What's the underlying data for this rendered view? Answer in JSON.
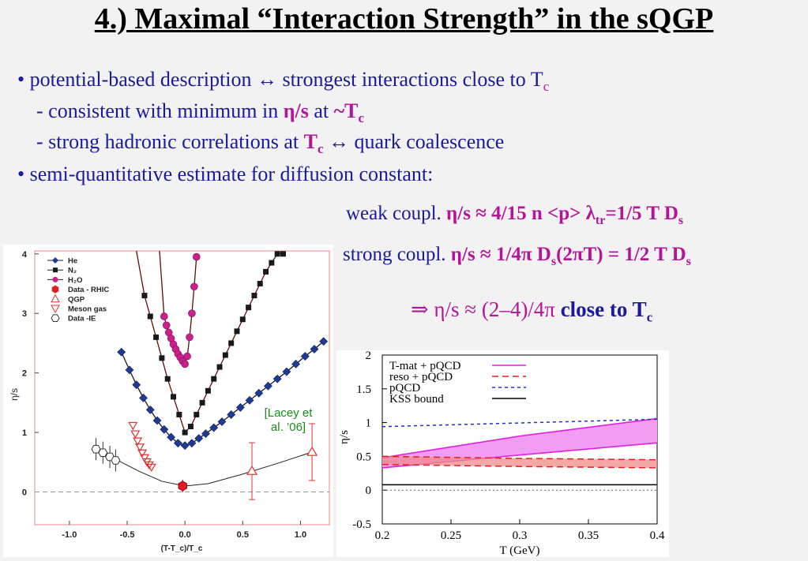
{
  "title": "4.) Maximal “Interaction Strength” in the sQGP",
  "bullets": {
    "b1_text": "• potential-based description ↔ strongest interactions close to T",
    "b1_sub": "c",
    "b1a_pre": "- consistent with minimum in ",
    "b1a_eta": "η/s",
    "b1a_mid": " at ",
    "b1a_t": "~T",
    "b1a_sub": "c",
    "b1b_pre": "- strong hadronic correlations at ",
    "b1b_t": "T",
    "b1b_sub": "c",
    "b1b_post": " ↔  quark coalescence",
    "b2_text": "• semi-quantitative estimate for diffusion constant:"
  },
  "equations": {
    "weak_label": "weak coupl.  ",
    "weak_eq": "η/s ≈ 4/15 n <p> λ",
    "weak_sub": "tr",
    "weak_end": "=1/5 T D",
    "weak_end_sub": "s",
    "strong_label": "strong coupl. ",
    "strong_eq": "η/s ≈ 1/4π D",
    "strong_sub": "s",
    "strong_end": "(2πT) = 1/2 T D",
    "strong_end_sub": "s",
    "concl_arrow": "⇒  ",
    "concl_eq": "η/s ≈ (2–4)/4π ",
    "concl_close": "close to T",
    "concl_sub": "c"
  },
  "colors": {
    "blue_text": "#1a1a9a",
    "magenta": "#b4149a",
    "green_annot": "#1a8a1a",
    "he": "#1f3a93",
    "n2": "#1a1a1a",
    "h2o": "#cc1f8a",
    "qgp": "#e03030",
    "tmat": "#e020e0",
    "reso": "#e02020",
    "pqcd": "#1c2fd0"
  },
  "chart_data": [
    {
      "type": "scatter",
      "xlabel": "(T-T_c)/T_c",
      "ylabel": "η/s",
      "xlim": [
        -1.3,
        1.25
      ],
      "ylim": [
        -0.55,
        4.05
      ],
      "xticks": [
        "-1.0",
        "-0.5",
        "0.0",
        "0.5",
        "1.0"
      ],
      "yticks": [
        "0",
        "1",
        "2",
        "3",
        "4"
      ],
      "annotation": [
        "[Lacey et",
        "al. ’06]"
      ],
      "legend": [
        {
          "label": "He"
        },
        {
          "label": "N₂"
        },
        {
          "label": "H₂O"
        },
        {
          "label": "Data - RHIC"
        },
        {
          "label": "QGP"
        },
        {
          "label": "Meson gas"
        },
        {
          "label": "Data -IE"
        }
      ],
      "series": [
        {
          "name": "He",
          "marker": "diamond",
          "x": [
            -0.55,
            -0.48,
            -0.42,
            -0.36,
            -0.3,
            -0.24,
            -0.18,
            -0.12,
            -0.06,
            0.0,
            0.06,
            0.12,
            0.18,
            0.25,
            0.32,
            0.4,
            0.48,
            0.56,
            0.64,
            0.72,
            0.8,
            0.88,
            0.96,
            1.04,
            1.12,
            1.2
          ],
          "y": [
            2.35,
            2.05,
            1.8,
            1.58,
            1.38,
            1.2,
            1.05,
            0.92,
            0.82,
            0.78,
            0.82,
            0.9,
            0.98,
            1.08,
            1.18,
            1.3,
            1.42,
            1.54,
            1.66,
            1.78,
            1.9,
            2.02,
            2.15,
            2.28,
            2.4,
            2.53
          ]
        },
        {
          "name": "N₂",
          "marker": "square",
          "x": [
            -0.35,
            -0.3,
            -0.25,
            -0.2,
            -0.15,
            -0.1,
            -0.05,
            0.0,
            0.05,
            0.1,
            0.15,
            0.2,
            0.25,
            0.3,
            0.35,
            0.4,
            0.45,
            0.5,
            0.55,
            0.6,
            0.65,
            0.7,
            0.75,
            0.8,
            0.85
          ],
          "y": [
            3.3,
            2.95,
            2.6,
            2.25,
            1.9,
            1.6,
            1.3,
            1.0,
            1.1,
            1.3,
            1.5,
            1.7,
            1.9,
            2.1,
            2.3,
            2.5,
            2.7,
            2.9,
            3.1,
            3.3,
            3.5,
            3.7,
            3.85,
            4.0,
            4.0
          ]
        },
        {
          "name": "H₂O",
          "marker": "circle",
          "x": [
            -0.18,
            -0.16,
            -0.14,
            -0.12,
            -0.1,
            -0.08,
            -0.06,
            -0.04,
            -0.02,
            0.0,
            0.02,
            0.04,
            0.06,
            0.08,
            0.1
          ],
          "y": [
            2.95,
            2.8,
            2.68,
            2.58,
            2.48,
            2.4,
            2.32,
            2.26,
            2.2,
            2.15,
            2.28,
            2.6,
            3.0,
            3.45,
            3.95
          ]
        },
        {
          "name": "Data - RHIC",
          "marker": "hexagon",
          "x": [
            -0.02
          ],
          "y": [
            0.1
          ]
        },
        {
          "name": "QGP",
          "marker": "triangle-up",
          "x": [
            0.58,
            1.1
          ],
          "y": [
            0.35,
            0.67
          ]
        },
        {
          "name": "Meson gas",
          "marker": "triangle-down",
          "x": [
            -0.45,
            -0.43,
            -0.41,
            -0.39,
            -0.37,
            -0.35,
            -0.33,
            -0.31,
            -0.29
          ],
          "y": [
            1.12,
            0.98,
            0.86,
            0.76,
            0.66,
            0.58,
            0.51,
            0.46,
            0.42
          ]
        },
        {
          "name": "Data -IE",
          "marker": "hexagon-open",
          "x": [
            -0.77,
            -0.71,
            -0.65,
            -0.6
          ],
          "y": [
            0.72,
            0.66,
            0.59,
            0.53
          ]
        }
      ]
    },
    {
      "type": "line",
      "xlabel": "T (GeV)",
      "ylabel": "η/s",
      "xlim": [
        0.2,
        0.4
      ],
      "ylim": [
        -0.5,
        2.0
      ],
      "xticks": [
        "0.2",
        "0.25",
        "0.3",
        "0.35",
        "0.4"
      ],
      "yticks": [
        "2",
        "1.5",
        "1",
        "0.5",
        "0",
        "-0.5"
      ],
      "legend": [
        "T-mat + pQCD",
        "reso + pQCD",
        "pQCD",
        "KSS bound"
      ],
      "series": [
        {
          "name": "T-mat + pQCD",
          "x": [
            0.2,
            0.3,
            0.4
          ],
          "upper": [
            0.48,
            0.8,
            1.06
          ],
          "lower": [
            0.33,
            0.52,
            0.7
          ]
        },
        {
          "name": "reso + pQCD",
          "x": [
            0.2,
            0.3,
            0.4
          ],
          "upper": [
            0.5,
            0.47,
            0.45
          ],
          "lower": [
            0.38,
            0.35,
            0.33
          ]
        },
        {
          "name": "pQCD",
          "x": [
            0.2,
            0.4
          ],
          "y": [
            0.94,
            1.05
          ]
        },
        {
          "name": "KSS bound",
          "x": [
            0.2,
            0.4
          ],
          "y": [
            0.08,
            0.08
          ]
        }
      ]
    }
  ]
}
